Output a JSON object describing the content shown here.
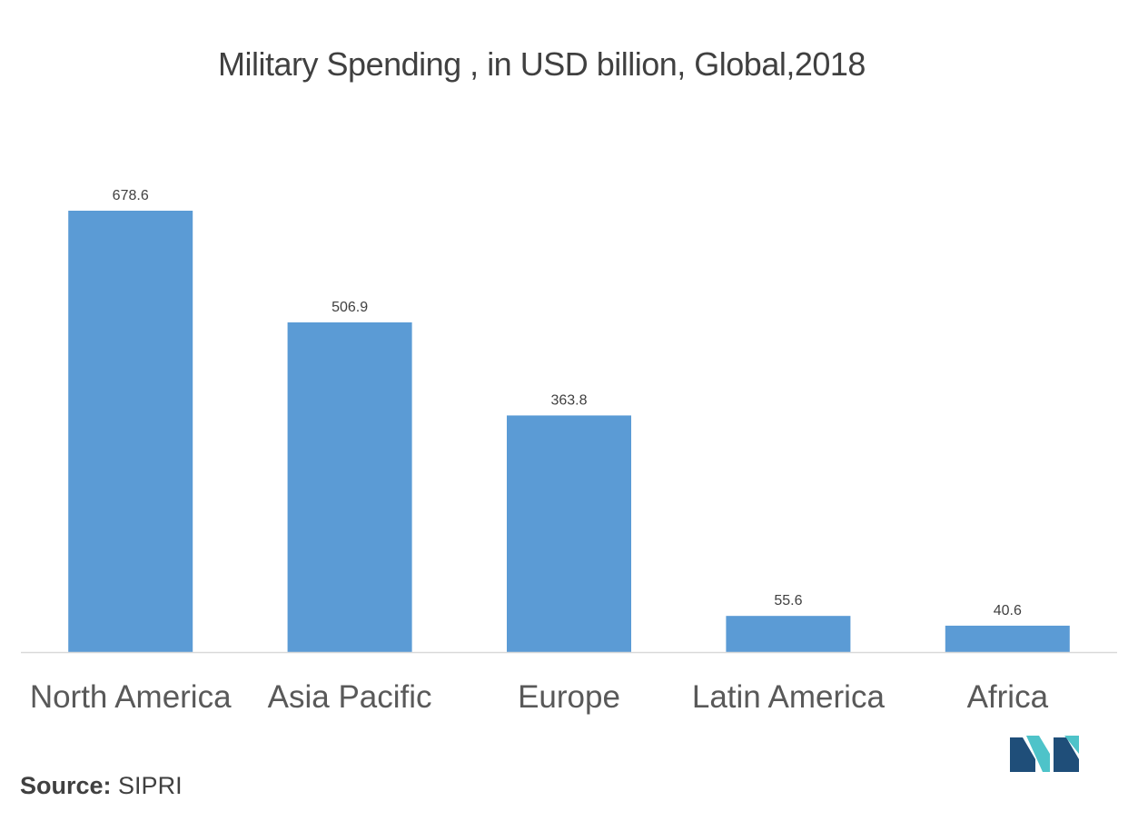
{
  "chart_data": {
    "type": "bar",
    "title": "Military Spending , in USD billion, Global,2018",
    "categories": [
      "North America",
      "Asia Pacific",
      "Europe",
      "Latin America",
      "Africa"
    ],
    "values": [
      678.6,
      506.9,
      363.8,
      55.6,
      40.6
    ],
    "value_labels": [
      "678.6",
      "506.9",
      "363.8",
      "55.6",
      "40.6"
    ],
    "xlabel": "",
    "ylabel": "",
    "ylim": [
      0,
      680
    ],
    "grid": false,
    "legend": "none",
    "bar_color": "#5b9bd5",
    "axis_color": "#d9d9d9"
  },
  "source": {
    "label": "Source:",
    "value": "SIPRI"
  },
  "logo": {
    "icon": "mordor-intelligence-logo-icon",
    "colors": [
      "#1f4e79",
      "#4ec3c9"
    ]
  }
}
